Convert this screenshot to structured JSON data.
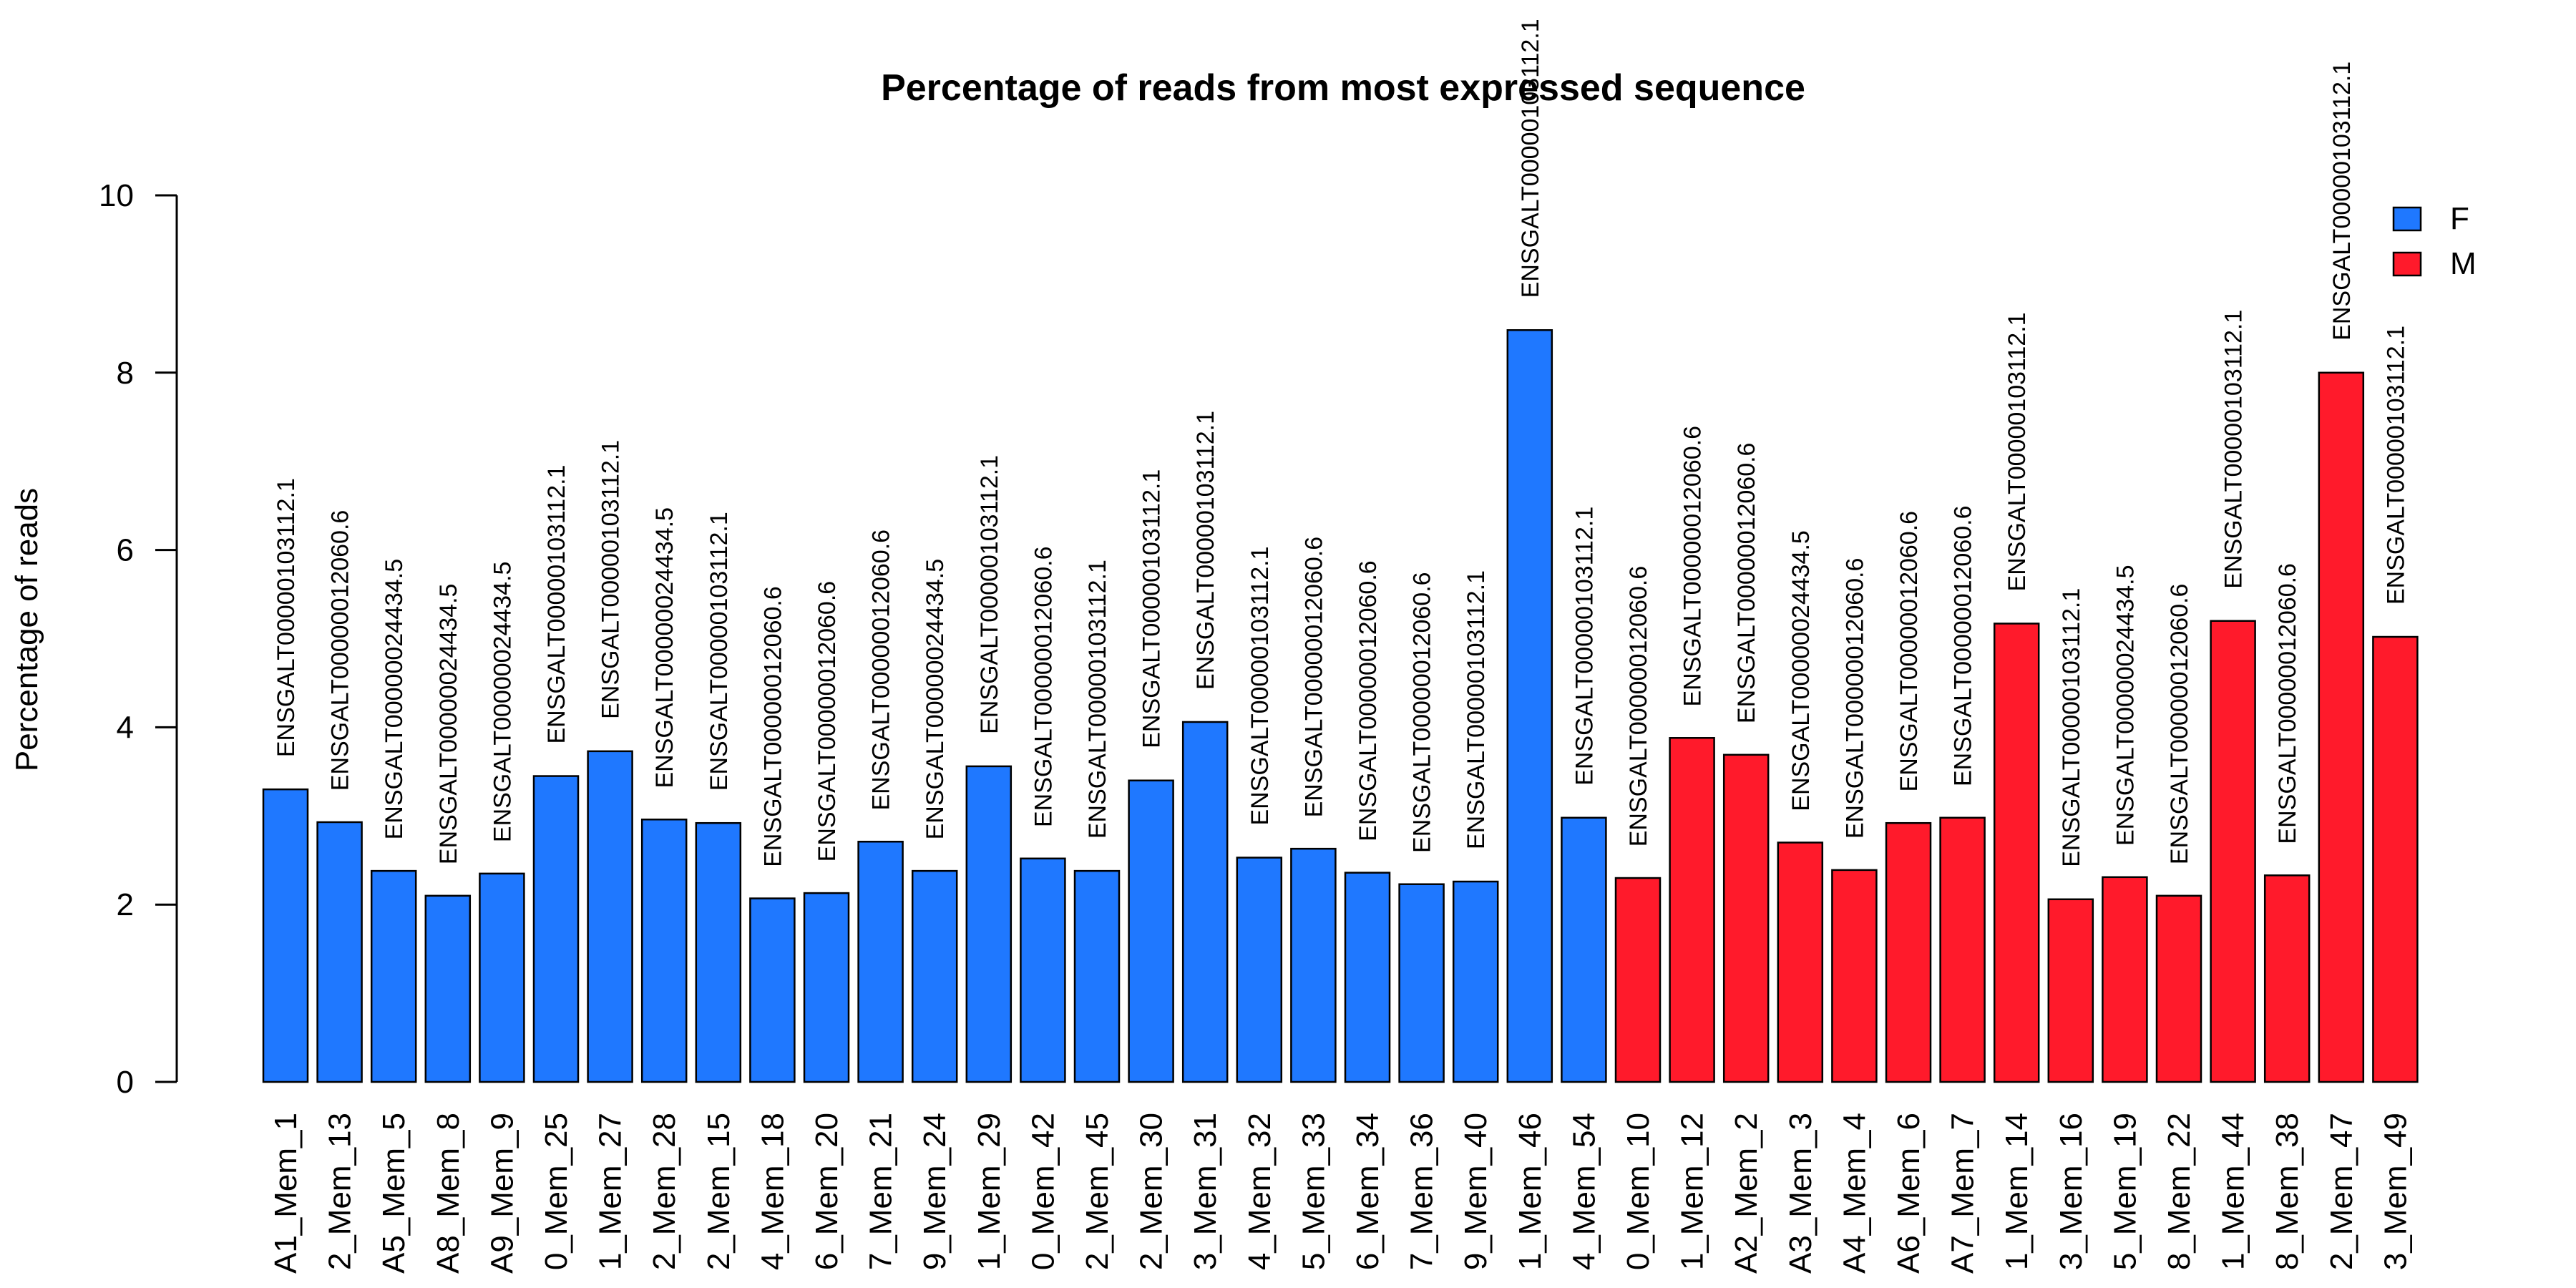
{
  "chart_data": {
    "type": "bar",
    "title": "Percentage of reads from most expressed sequence",
    "xlabel": "",
    "ylabel": "Percentage of reads",
    "ylim": [
      0,
      10
    ],
    "yticks": [
      0,
      2,
      4,
      6,
      8,
      10
    ],
    "grid": false,
    "legend_position": "top-right",
    "legend": [
      {
        "name": "F",
        "color": "#1f78ff"
      },
      {
        "name": "M",
        "color": "#ff1a2b"
      }
    ],
    "bars": [
      {
        "category": "A1_Mem_1",
        "value": 3.3,
        "label": "ENSGALT00000103112.1",
        "group": "F"
      },
      {
        "category": "2_Mem_13",
        "value": 2.93,
        "label": "ENSGALT00000012060.6",
        "group": "F"
      },
      {
        "category": "A5_Mem_5",
        "value": 2.38,
        "label": "ENSGALT00000024434.5",
        "group": "F"
      },
      {
        "category": "A8_Mem_8",
        "value": 2.1,
        "label": "ENSGALT00000024434.5",
        "group": "F"
      },
      {
        "category": "A9_Mem_9",
        "value": 2.35,
        "label": "ENSGALT00000024434.5",
        "group": "F"
      },
      {
        "category": "0_Mem_25",
        "value": 3.45,
        "label": "ENSGALT00000103112.1",
        "group": "F"
      },
      {
        "category": "1_Mem_27",
        "value": 3.73,
        "label": "ENSGALT00000103112.1",
        "group": "F"
      },
      {
        "category": "2_Mem_28",
        "value": 2.96,
        "label": "ENSGALT00000024434.5",
        "group": "F"
      },
      {
        "category": "2_Mem_15",
        "value": 2.92,
        "label": "ENSGALT00000103112.1",
        "group": "F"
      },
      {
        "category": "4_Mem_18",
        "value": 2.07,
        "label": "ENSGALT00000012060.6",
        "group": "F"
      },
      {
        "category": "6_Mem_20",
        "value": 2.13,
        "label": "ENSGALT00000012060.6",
        "group": "F"
      },
      {
        "category": "7_Mem_21",
        "value": 2.71,
        "label": "ENSGALT00000012060.6",
        "group": "F"
      },
      {
        "category": "9_Mem_24",
        "value": 2.38,
        "label": "ENSGALT00000024434.5",
        "group": "F"
      },
      {
        "category": "1_Mem_29",
        "value": 3.56,
        "label": "ENSGALT00000103112.1",
        "group": "F"
      },
      {
        "category": "0_Mem_42",
        "value": 2.52,
        "label": "ENSGALT00000012060.6",
        "group": "F"
      },
      {
        "category": "2_Mem_45",
        "value": 2.38,
        "label": "ENSGALT00000103112.1",
        "group": "F"
      },
      {
        "category": "2_Mem_30",
        "value": 3.4,
        "label": "ENSGALT00000103112.1",
        "group": "F"
      },
      {
        "category": "3_Mem_31",
        "value": 4.06,
        "label": "ENSGALT00000103112.1",
        "group": "F"
      },
      {
        "category": "4_Mem_32",
        "value": 2.53,
        "label": "ENSGALT00000103112.1",
        "group": "F"
      },
      {
        "category": "5_Mem_33",
        "value": 2.63,
        "label": "ENSGALT00000012060.6",
        "group": "F"
      },
      {
        "category": "6_Mem_34",
        "value": 2.36,
        "label": "ENSGALT00000012060.6",
        "group": "F"
      },
      {
        "category": "7_Mem_36",
        "value": 2.23,
        "label": "ENSGALT00000012060.6",
        "group": "F"
      },
      {
        "category": "9_Mem_40",
        "value": 2.26,
        "label": "ENSGALT00000103112.1",
        "group": "F"
      },
      {
        "category": "1_Mem_46",
        "value": 8.48,
        "label": "ENSGALT00000103112.1",
        "group": "F"
      },
      {
        "category": "4_Mem_54",
        "value": 2.98,
        "label": "ENSGALT00000103112.1",
        "group": "F"
      },
      {
        "category": "0_Mem_10",
        "value": 2.3,
        "label": "ENSGALT00000012060.6",
        "group": "M"
      },
      {
        "category": "1_Mem_12",
        "value": 3.88,
        "label": "ENSGALT00000012060.6",
        "group": "M"
      },
      {
        "category": "A2_Mem_2",
        "value": 3.69,
        "label": "ENSGALT00000012060.6",
        "group": "M"
      },
      {
        "category": "A3_Mem_3",
        "value": 2.7,
        "label": "ENSGALT00000024434.5",
        "group": "M"
      },
      {
        "category": "A4_Mem_4",
        "value": 2.39,
        "label": "ENSGALT00000012060.6",
        "group": "M"
      },
      {
        "category": "A6_Mem_6",
        "value": 2.92,
        "label": "ENSGALT00000012060.6",
        "group": "M"
      },
      {
        "category": "A7_Mem_7",
        "value": 2.98,
        "label": "ENSGALT00000012060.6",
        "group": "M"
      },
      {
        "category": "1_Mem_14",
        "value": 5.17,
        "label": "ENSGALT00000103112.1",
        "group": "M"
      },
      {
        "category": "3_Mem_16",
        "value": 2.06,
        "label": "ENSGALT00000103112.1",
        "group": "M"
      },
      {
        "category": "5_Mem_19",
        "value": 2.31,
        "label": "ENSGALT00000024434.5",
        "group": "M"
      },
      {
        "category": "8_Mem_22",
        "value": 2.1,
        "label": "ENSGALT00000012060.6",
        "group": "M"
      },
      {
        "category": "1_Mem_44",
        "value": 5.2,
        "label": "ENSGALT00000103112.1",
        "group": "M"
      },
      {
        "category": "8_Mem_38",
        "value": 2.33,
        "label": "ENSGALT00000012060.6",
        "group": "M"
      },
      {
        "category": "2_Mem_47",
        "value": 8.0,
        "label": "ENSGALT00000103112.1",
        "group": "M"
      },
      {
        "category": "3_Mem_49",
        "value": 5.02,
        "label": "ENSGALT00000103112.1",
        "group": "M"
      }
    ]
  }
}
